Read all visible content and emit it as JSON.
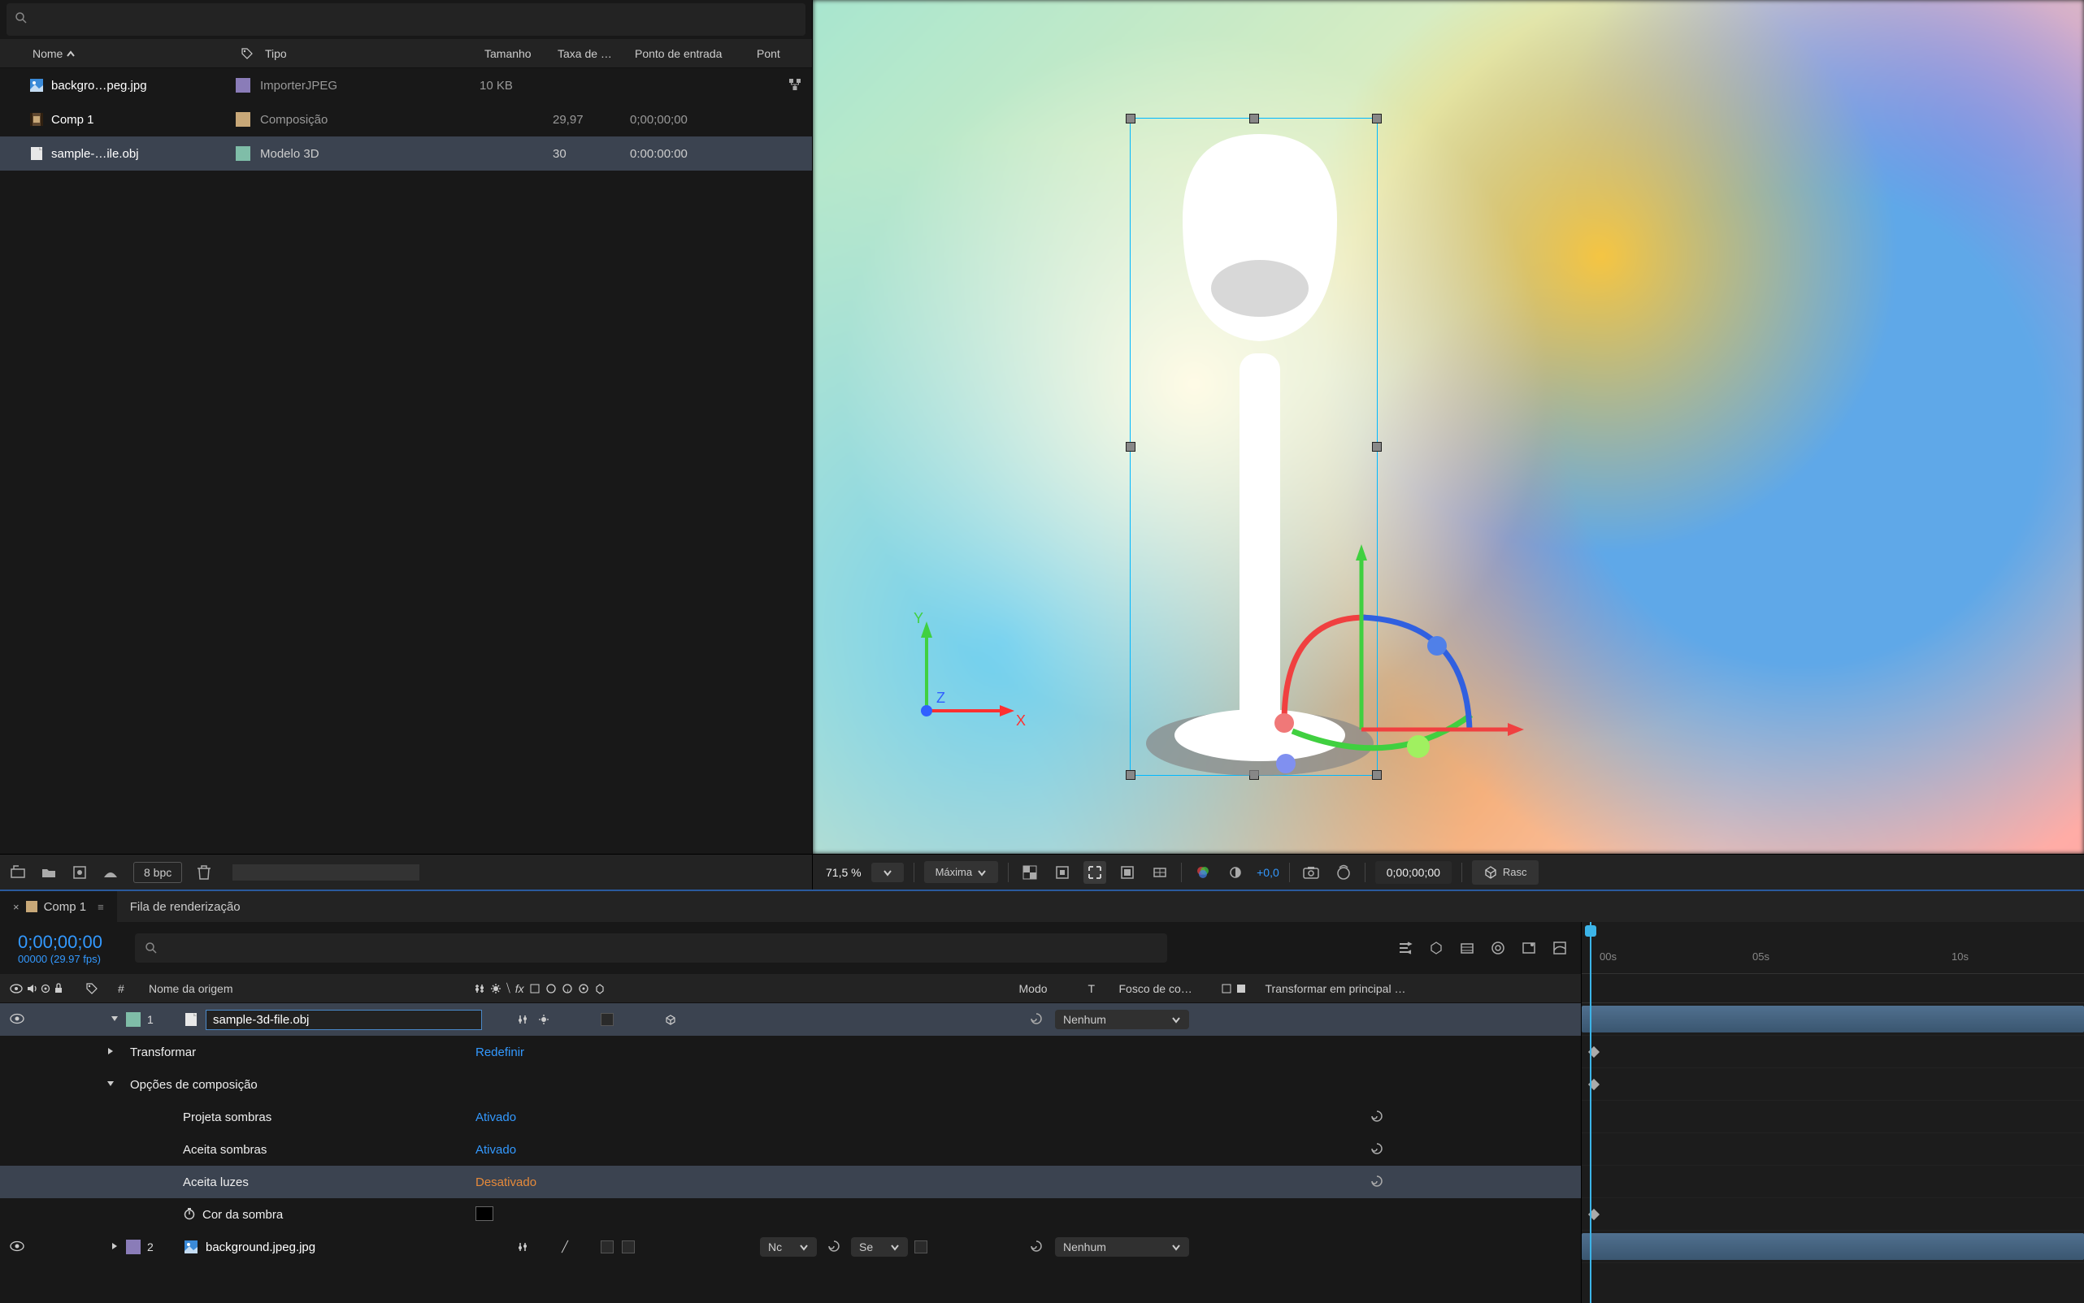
{
  "colors": {
    "accent_blue": "#3399ff",
    "text": "#cccccc",
    "bg_dark": "#181818",
    "bg_panel": "#232323",
    "selection": "#3b4350",
    "orange": "#e68a3a"
  },
  "project": {
    "search_placeholder": "",
    "columns": {
      "name": "Nome",
      "tag": "",
      "type": "Tipo",
      "size": "Tamanho",
      "rate": "Taxa de …",
      "inpoint": "Ponto de entrada",
      "outpoint": "Pont"
    },
    "items": [
      {
        "name": "backgro…peg.jpg",
        "tag_color": "#8a7cb8",
        "type": "ImporterJPEG",
        "size": "10 KB",
        "rate": "",
        "in": "",
        "icon": "image"
      },
      {
        "name": "Comp 1",
        "tag_color": "#c8a878",
        "type": "Composição",
        "size": "",
        "rate": "29,97",
        "in": "0;00;00;00",
        "icon": "comp"
      },
      {
        "name": "sample-…ile.obj",
        "tag_color": "#7fbda8",
        "type": "Modelo 3D",
        "size": "",
        "rate": "30",
        "in": "0:00:00:00",
        "icon": "obj",
        "selected": true
      }
    ],
    "footer": {
      "bpc": "8 bpc"
    }
  },
  "viewer": {
    "zoom": "71,5",
    "zoom_unit": "%",
    "quality": "Máxima",
    "exposure": "+0,0",
    "timecode": "0;00;00;00",
    "sketch_btn": "Rasc",
    "gizmo": {
      "x_label": "X",
      "y_label": "Y",
      "z_label": "Z",
      "x_color": "#ff3030",
      "y_color": "#30c030",
      "z_color": "#3060ff"
    }
  },
  "timeline": {
    "tabs": [
      {
        "label": "Comp 1",
        "active": true
      },
      {
        "label": "Fila de renderização",
        "active": false
      }
    ],
    "timecode": "0;00;00;00",
    "timecode_sub": "00000 (29.97 fps)",
    "search_placeholder": "",
    "columns": {
      "name": "Nome da origem",
      "mode": "Modo",
      "t": "T",
      "matte": "Fosco de co…",
      "parent": "Transformar em principal …"
    },
    "ruler_ticks": [
      "00s",
      "05s",
      "10s"
    ],
    "layers": [
      {
        "num": "1",
        "name": "sample-3d-file.obj",
        "tag_color": "#7fbda8",
        "selected": true,
        "icon": "obj",
        "name_edit": true,
        "parent_drop": "Nenhum",
        "props": [
          {
            "name": "Transformar",
            "value": "Redefinir",
            "tri": "right",
            "indent": 1
          },
          {
            "name": "Opções de composição",
            "tri": "down",
            "indent": 1
          },
          {
            "name": "Projeta sombras",
            "value": "Ativado",
            "indent": 2,
            "swirl": true
          },
          {
            "name": "Aceita sombras",
            "value": "Ativado",
            "indent": 2,
            "swirl": true
          },
          {
            "name": "Aceita luzes",
            "value": "Desativado",
            "indent": 2,
            "swirl": true,
            "selected": true,
            "valclass": "off"
          },
          {
            "name": "Cor da sombra",
            "stopwatch": true,
            "indent": 2,
            "colorchip": "#000000"
          }
        ]
      },
      {
        "num": "2",
        "name": "background.jpeg.jpg",
        "tag_color": "#8a7cb8",
        "icon": "image",
        "mode_drop": "Nc",
        "matte_drop": "Se",
        "parent_drop": "Nenhum"
      }
    ]
  }
}
